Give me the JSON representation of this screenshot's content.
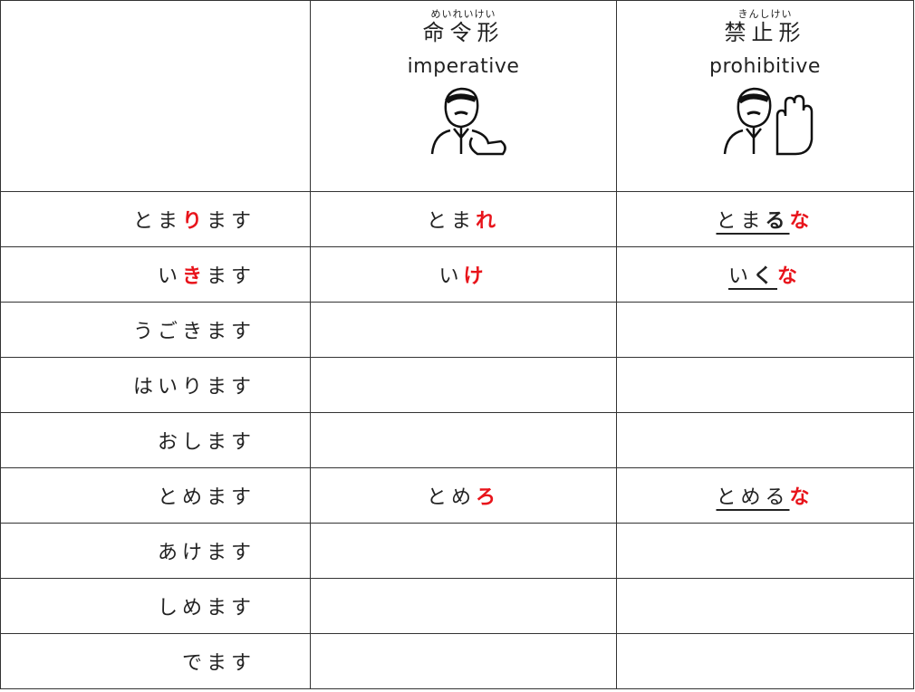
{
  "header": {
    "columns": [
      {
        "furigana": "めいれいけい",
        "kanji": "命令形",
        "english": "imperative"
      },
      {
        "furigana": "きんしけい",
        "kanji": "禁止形",
        "english": "prohibitive"
      }
    ]
  },
  "table": {
    "rows": [
      [
        [
          {
            "text": "とま"
          },
          {
            "text": "り",
            "color": "#e8141b",
            "bold": true
          },
          {
            "text": "ます"
          }
        ],
        [
          {
            "text": "とま"
          },
          {
            "text": "れ",
            "color": "#e8141b",
            "bold": true
          }
        ],
        [
          {
            "text": "とま",
            "underline": true
          },
          {
            "text": "る",
            "bold": true,
            "underline": true
          },
          {
            "text": "な",
            "color": "#e8141b",
            "bold": true
          }
        ]
      ],
      [
        [
          {
            "text": "い"
          },
          {
            "text": "き",
            "color": "#e8141b",
            "bold": true
          },
          {
            "text": "ます"
          }
        ],
        [
          {
            "text": "い"
          },
          {
            "text": "け",
            "color": "#e8141b",
            "bold": true
          }
        ],
        [
          {
            "text": "い",
            "underline": true
          },
          {
            "text": "く",
            "bold": true,
            "underline": true
          },
          {
            "text": "な",
            "color": "#e8141b",
            "bold": true
          }
        ]
      ],
      [
        [
          {
            "text": "うごきます"
          }
        ],
        [],
        []
      ],
      [
        [
          {
            "text": "はいります"
          }
        ],
        [],
        []
      ],
      [
        [
          {
            "text": "おします"
          }
        ],
        [],
        []
      ],
      [
        [
          {
            "text": "とめます"
          }
        ],
        [
          {
            "text": "とめ"
          },
          {
            "text": "ろ",
            "color": "#e8141b",
            "bold": true
          }
        ],
        [
          {
            "text": "とめる",
            "underline": true
          },
          {
            "text": "な",
            "color": "#e8141b",
            "bold": true
          }
        ]
      ],
      [
        [
          {
            "text": "あけます"
          }
        ],
        [],
        []
      ],
      [
        [
          {
            "text": "しめます"
          }
        ],
        [],
        []
      ],
      [
        [
          {
            "text": "でます"
          }
        ],
        [],
        []
      ]
    ]
  }
}
